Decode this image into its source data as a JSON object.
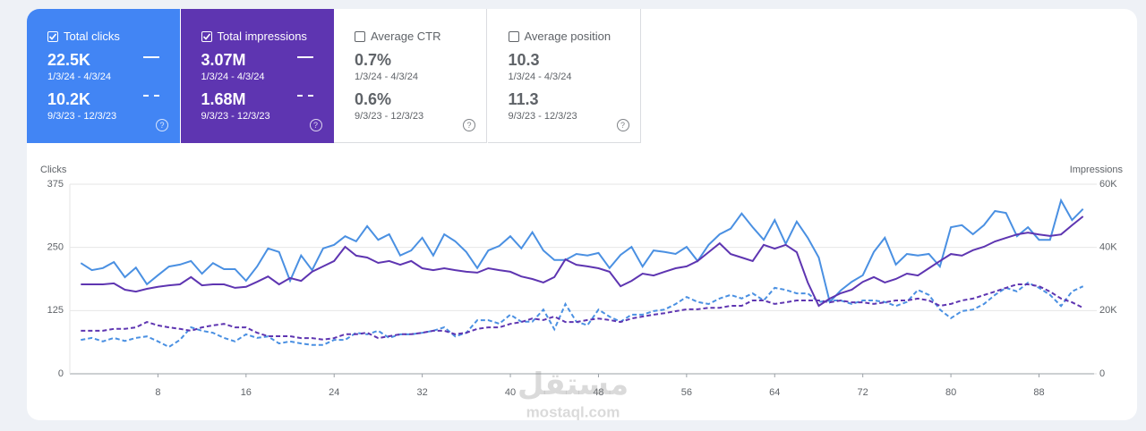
{
  "metrics": [
    {
      "label": "Total clicks",
      "checked": true,
      "current": "22.5K",
      "current_range": "1/3/24 - 4/3/24",
      "previous": "10.2K",
      "previous_range": "9/3/23 - 12/3/23",
      "color": "#4285f4"
    },
    {
      "label": "Total impressions",
      "checked": true,
      "current": "3.07M",
      "current_range": "1/3/24 - 4/3/24",
      "previous": "1.68M",
      "previous_range": "9/3/23 - 12/3/23",
      "color": "#5e35b1"
    },
    {
      "label": "Average CTR",
      "checked": false,
      "current": "0.7%",
      "current_range": "1/3/24 - 4/3/24",
      "previous": "0.6%",
      "previous_range": "9/3/23 - 12/3/23",
      "color": "#ffffff"
    },
    {
      "label": "Average position",
      "checked": false,
      "current": "10.3",
      "current_range": "1/3/24 - 4/3/24",
      "previous": "11.3",
      "previous_range": "9/3/23 - 12/3/23",
      "color": "#ffffff"
    }
  ],
  "chart_data": {
    "type": "line",
    "y_label": "Clicks",
    "y2_label": "Impressions",
    "x": [
      1,
      2,
      3,
      4,
      5,
      6,
      7,
      8,
      9,
      10,
      11,
      12,
      13,
      14,
      15,
      16,
      17,
      18,
      19,
      20,
      21,
      22,
      23,
      24,
      25,
      26,
      27,
      28,
      29,
      30,
      31,
      32,
      33,
      34,
      35,
      36,
      37,
      38,
      39,
      40,
      41,
      42,
      43,
      44,
      45,
      46,
      47,
      48,
      49,
      50,
      51,
      52,
      53,
      54,
      55,
      56,
      57,
      58,
      59,
      60,
      61,
      62,
      63,
      64,
      65,
      66,
      67,
      68,
      69,
      70,
      71,
      72,
      73,
      74,
      75,
      76,
      77,
      78,
      79,
      80,
      81,
      82,
      83,
      84,
      85,
      86,
      87,
      88,
      89,
      90,
      91,
      92
    ],
    "xlim": [
      0,
      93
    ],
    "xticks": [
      8,
      16,
      24,
      32,
      40,
      48,
      56,
      64,
      72,
      80,
      88
    ],
    "ylim": [
      0,
      375
    ],
    "yticks": [
      0,
      125,
      250,
      375
    ],
    "y2lim": [
      0,
      60000
    ],
    "y2ticks": [
      0,
      {
        "value": 20000,
        "label": "20K"
      },
      {
        "value": 40000,
        "label": "40K"
      },
      {
        "value": 60000,
        "label": "60K"
      }
    ],
    "grid": true,
    "series": [
      {
        "color": "#4a90e2",
        "dashed": false,
        "axis": "y",
        "values": [
          219,
          205,
          209,
          221,
          191,
          210,
          177,
          195,
          212,
          216,
          223,
          198,
          219,
          207,
          207,
          184,
          212,
          248,
          241,
          184,
          234,
          205,
          248,
          255,
          272,
          262,
          292,
          265,
          276,
          234,
          244,
          269,
          234,
          276,
          262,
          241,
          209,
          244,
          253,
          272,
          248,
          280,
          244,
          225,
          225,
          237,
          234,
          239,
          209,
          235,
          251,
          212,
          244,
          241,
          237,
          251,
          223,
          255,
          276,
          287,
          317,
          290,
          265,
          304,
          257,
          301,
          269,
          230,
          142,
          165,
          182,
          195,
          241,
          269,
          216,
          237,
          234,
          237,
          212,
          290,
          294,
          276,
          294,
          322,
          318,
          272,
          290,
          265,
          265,
          343,
          304,
          326
        ]
      },
      {
        "color": "#4a90e2",
        "dashed": true,
        "axis": "y",
        "values": [
          67,
          71,
          64,
          71,
          65,
          71,
          74,
          64,
          53,
          67,
          92,
          85,
          81,
          71,
          64,
          78,
          71,
          74,
          60,
          64,
          60,
          57,
          57,
          67,
          67,
          81,
          78,
          85,
          71,
          78,
          78,
          81,
          85,
          92,
          74,
          81,
          106,
          106,
          99,
          117,
          103,
          103,
          127,
          88,
          138,
          103,
          96,
          127,
          113,
          103,
          117,
          117,
          124,
          127,
          138,
          152,
          142,
          138,
          149,
          156,
          149,
          159,
          145,
          170,
          166,
          159,
          159,
          142,
          145,
          145,
          138,
          145,
          145,
          142,
          134,
          142,
          166,
          156,
          127,
          110,
          124,
          127,
          138,
          156,
          170,
          163,
          180,
          170,
          156,
          134,
          163,
          173
        ]
      },
      {
        "color": "#5e35b1",
        "dashed": false,
        "axis": "y2",
        "values": [
          28300,
          28300,
          28300,
          28600,
          26600,
          26000,
          26900,
          27500,
          28000,
          28300,
          30600,
          28000,
          28300,
          28300,
          27200,
          27500,
          29100,
          30800,
          28300,
          30300,
          29400,
          32300,
          34000,
          35700,
          40200,
          37400,
          36800,
          35100,
          35700,
          34500,
          35700,
          33400,
          32800,
          33400,
          32800,
          32300,
          32000,
          33400,
          32800,
          32300,
          30800,
          30000,
          28900,
          30600,
          36200,
          34500,
          34000,
          33400,
          32300,
          27700,
          29400,
          31700,
          31100,
          32300,
          33400,
          34000,
          35700,
          38500,
          41300,
          37900,
          36800,
          35700,
          40800,
          39600,
          40800,
          38500,
          28900,
          21500,
          23800,
          25500,
          26600,
          29100,
          30600,
          28900,
          30000,
          31700,
          31100,
          33400,
          35700,
          37900,
          37400,
          39100,
          40200,
          41900,
          43000,
          44100,
          44700,
          44100,
          43600,
          44100,
          47000,
          49800
        ]
      },
      {
        "color": "#5e35b1",
        "dashed": true,
        "axis": "y2",
        "values": [
          13600,
          13600,
          13600,
          14200,
          14200,
          14700,
          16400,
          15300,
          14700,
          14200,
          13600,
          14700,
          15300,
          15800,
          14700,
          14700,
          13000,
          11900,
          11900,
          11900,
          11300,
          11300,
          10800,
          11300,
          12500,
          12500,
          13000,
          11300,
          11900,
          12500,
          12500,
          13000,
          13600,
          13600,
          12500,
          13000,
          14200,
          14700,
          14700,
          15800,
          16400,
          17500,
          17000,
          18100,
          16400,
          16400,
          17000,
          17500,
          17000,
          16400,
          17500,
          18100,
          18700,
          19200,
          19800,
          20400,
          20400,
          20900,
          20900,
          21500,
          21500,
          23200,
          23200,
          22100,
          22600,
          23200,
          23200,
          23200,
          22600,
          23200,
          22600,
          22600,
          22100,
          22600,
          23200,
          23200,
          23800,
          23200,
          21500,
          22100,
          23200,
          23800,
          24900,
          26000,
          27200,
          28300,
          28300,
          27700,
          26000,
          23800,
          22600,
          20900
        ]
      }
    ]
  },
  "watermark": {
    "logo": "مستقل",
    "text": "mostaql.com"
  }
}
